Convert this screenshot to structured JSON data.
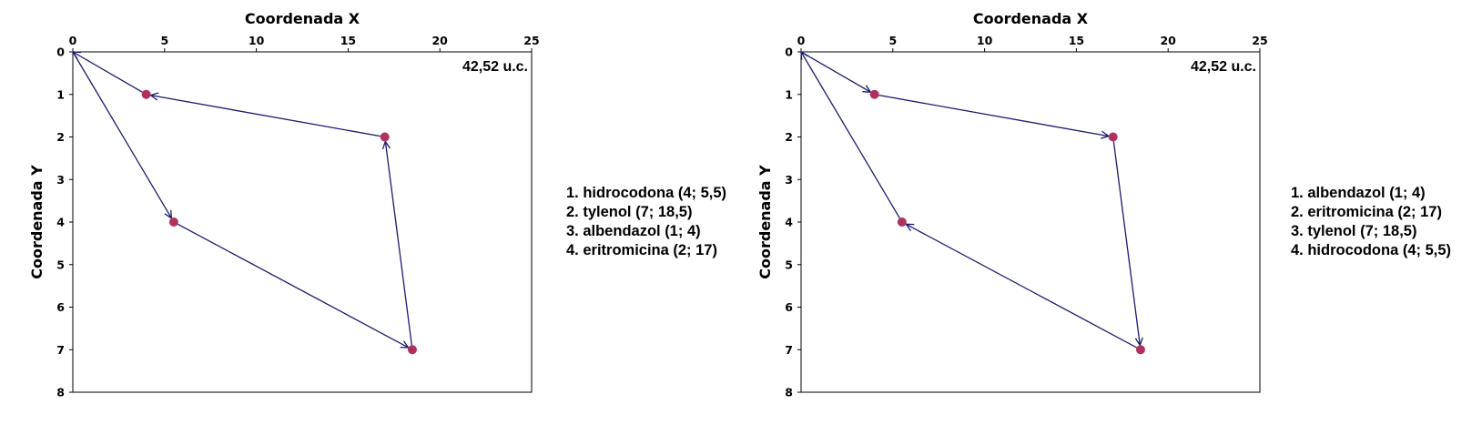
{
  "chart_data": [
    {
      "type": "scatter",
      "xlabel": "Coordenada X",
      "ylabel": "Coordenada Y",
      "xlim": [
        0,
        25
      ],
      "ylim": [
        8,
        0
      ],
      "x_axis_position": "top",
      "y_inverted": true,
      "xticks": [
        0,
        5,
        10,
        15,
        20,
        25
      ],
      "yticks": [
        0,
        1,
        2,
        3,
        4,
        5,
        6,
        7,
        8
      ],
      "annotation": "42,52 u.c.",
      "points": [
        {
          "x": 4,
          "y": 1
        },
        {
          "x": 17,
          "y": 2
        },
        {
          "x": 18.5,
          "y": 7
        },
        {
          "x": 5.5,
          "y": 4
        }
      ],
      "route": [
        {
          "x": 0,
          "y": 0
        },
        {
          "x": 5.5,
          "y": 4
        },
        {
          "x": 18.5,
          "y": 7
        },
        {
          "x": 17,
          "y": 2
        },
        {
          "x": 4,
          "y": 1
        },
        {
          "x": 0,
          "y": 0
        }
      ],
      "legend": [
        "1. hidrocodona (4; 5,5)",
        "2. tylenol (7; 18,5)",
        "3. albendazol (1; 4)",
        "4. eritromicina (2; 17)"
      ],
      "route_color": "#1a1a6e",
      "point_color": "#b0305e"
    },
    {
      "type": "scatter",
      "xlabel": "Coordenada X",
      "ylabel": "Coordenada Y",
      "xlim": [
        0,
        25
      ],
      "ylim": [
        8,
        0
      ],
      "x_axis_position": "top",
      "y_inverted": true,
      "xticks": [
        0,
        5,
        10,
        15,
        20,
        25
      ],
      "yticks": [
        0,
        1,
        2,
        3,
        4,
        5,
        6,
        7,
        8
      ],
      "annotation": "42,52 u.c.",
      "points": [
        {
          "x": 4,
          "y": 1
        },
        {
          "x": 17,
          "y": 2
        },
        {
          "x": 18.5,
          "y": 7
        },
        {
          "x": 5.5,
          "y": 4
        }
      ],
      "route": [
        {
          "x": 0,
          "y": 0
        },
        {
          "x": 4,
          "y": 1
        },
        {
          "x": 17,
          "y": 2
        },
        {
          "x": 18.5,
          "y": 7
        },
        {
          "x": 5.5,
          "y": 4
        },
        {
          "x": 0,
          "y": 0
        }
      ],
      "legend": [
        "1. albendazol (1; 4)",
        "2. eritromicina (2; 17)",
        "3. tylenol (7; 18,5)",
        "4. hidrocodona (4; 5,5)"
      ],
      "route_color": "#1a1a6e",
      "point_color": "#b0305e"
    }
  ]
}
